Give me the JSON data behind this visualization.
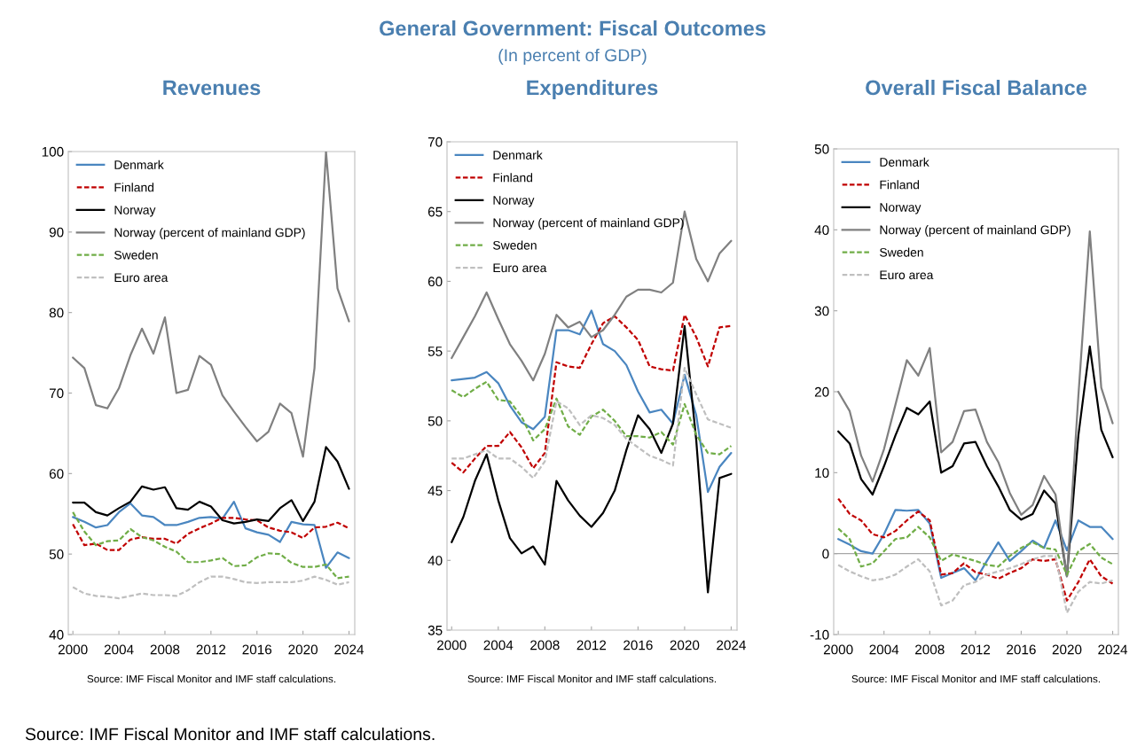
{
  "chart_data": [
    {
      "type": "other",
      "title": "General Government: Fiscal Outcomes",
      "subtitle": "(In percent of GDP)",
      "annotations": [
        "Source: IMF Fiscal Monitor and IMF staff calculations."
      ]
    },
    {
      "type": "line",
      "title": "Revenues",
      "x": [
        2000,
        2001,
        2002,
        2003,
        2004,
        2005,
        2006,
        2007,
        2008,
        2009,
        2010,
        2011,
        2012,
        2013,
        2014,
        2015,
        2016,
        2017,
        2018,
        2019,
        2020,
        2021,
        2022,
        2023,
        2024
      ],
      "xlim": [
        1999.6,
        2024.5
      ],
      "xticks": [
        2000,
        2004,
        2008,
        2012,
        2016,
        2020,
        2024
      ],
      "ylim": [
        40,
        100
      ],
      "yticks": [
        40,
        50,
        60,
        70,
        80,
        90,
        100
      ],
      "grid": false,
      "legend": "top left",
      "marker": "none",
      "annotations": [
        "Source: IMF Fiscal Monitor and IMF staff calculations."
      ],
      "series": [
        {
          "name": "Denmark",
          "color": "#4a86c0",
          "line_style": "solid",
          "values": [
            54.6,
            54.0,
            53.3,
            53.6,
            55.2,
            56.3,
            54.8,
            54.6,
            53.6,
            53.6,
            54.0,
            54.5,
            54.6,
            54.4,
            56.5,
            53.2,
            52.7,
            52.4,
            51.5,
            54.0,
            53.7,
            53.6,
            48.3,
            50.2,
            49.5
          ]
        },
        {
          "name": "Finland",
          "color": "#c00000",
          "line_style": "dashed",
          "values": [
            53.7,
            51.1,
            51.3,
            50.5,
            50.5,
            51.8,
            52.1,
            51.9,
            51.9,
            51.3,
            52.5,
            53.2,
            53.8,
            54.5,
            54.5,
            54.3,
            54.2,
            53.3,
            52.9,
            52.7,
            52.0,
            53.3,
            53.4,
            53.9,
            53.2
          ]
        },
        {
          "name": "Norway",
          "color": "#000000",
          "line_style": "solid",
          "values": [
            56.4,
            56.4,
            55.2,
            54.8,
            55.7,
            56.5,
            58.4,
            58.0,
            58.3,
            55.7,
            55.5,
            56.5,
            55.9,
            54.2,
            53.8,
            54.0,
            54.3,
            54.1,
            55.7,
            56.7,
            54.1,
            56.5,
            63.3,
            61.5,
            58.1
          ]
        },
        {
          "name": "Norway (percent of mainland GDP)",
          "color": "#808080",
          "line_style": "solid",
          "values": [
            74.4,
            73.1,
            68.5,
            68.1,
            70.6,
            74.7,
            78.0,
            74.9,
            79.4,
            70.0,
            70.4,
            74.6,
            73.5,
            69.7,
            67.7,
            65.8,
            64.0,
            65.2,
            68.7,
            67.5,
            62.1,
            73.1,
            100,
            83.0,
            78.9
          ]
        },
        {
          "name": "Sweden",
          "color": "#70ad47",
          "line_style": "dashed",
          "values": [
            55.2,
            52.8,
            51.1,
            51.6,
            51.7,
            53.1,
            52.1,
            51.7,
            50.9,
            50.3,
            49.0,
            49.0,
            49.2,
            49.5,
            48.5,
            48.6,
            49.6,
            50.1,
            50.0,
            48.9,
            48.4,
            48.4,
            48.7,
            47.0,
            47.2
          ]
        },
        {
          "name": "Euro area",
          "color": "#bfbfbf",
          "line_style": "dashed",
          "values": [
            45.9,
            45.1,
            44.8,
            44.7,
            44.5,
            44.8,
            45.1,
            44.9,
            44.9,
            44.8,
            45.5,
            46.5,
            47.2,
            47.2,
            46.9,
            46.5,
            46.4,
            46.5,
            46.5,
            46.5,
            46.7,
            47.2,
            46.8,
            46.2,
            46.5
          ]
        }
      ]
    },
    {
      "type": "line",
      "title": "Expenditures",
      "x": [
        2000,
        2001,
        2002,
        2003,
        2004,
        2005,
        2006,
        2007,
        2008,
        2009,
        2010,
        2011,
        2012,
        2013,
        2014,
        2015,
        2016,
        2017,
        2018,
        2019,
        2020,
        2021,
        2022,
        2023,
        2024
      ],
      "xlim": [
        1999.6,
        2024.5
      ],
      "xticks": [
        2000,
        2004,
        2008,
        2012,
        2016,
        2020,
        2024
      ],
      "ylim": [
        35,
        70
      ],
      "yticks": [
        35,
        40,
        45,
        50,
        55,
        60,
        65,
        70
      ],
      "grid": false,
      "legend": "top left",
      "marker": "none",
      "annotations": [
        "Source: IMF Fiscal Monitor and IMF staff calculations."
      ],
      "series": [
        {
          "name": "Denmark",
          "color": "#4a86c0",
          "line_style": "solid",
          "values": [
            52.9,
            53.0,
            53.1,
            53.5,
            52.7,
            51.1,
            49.9,
            49.4,
            50.3,
            56.5,
            56.5,
            56.2,
            57.9,
            55.5,
            55.0,
            54.0,
            52.1,
            50.6,
            50.8,
            49.8,
            53.3,
            50.4,
            44.9,
            46.7,
            47.7
          ]
        },
        {
          "name": "Finland",
          "color": "#c00000",
          "line_style": "dashed",
          "values": [
            47.0,
            46.3,
            47.3,
            48.2,
            48.2,
            49.2,
            48.1,
            46.6,
            47.7,
            54.2,
            53.9,
            53.8,
            55.5,
            57.0,
            57.5,
            56.7,
            55.8,
            53.9,
            53.7,
            53.6,
            57.6,
            56.0,
            53.9,
            56.7,
            56.8
          ]
        },
        {
          "name": "Norway",
          "color": "#000000",
          "line_style": "solid",
          "values": [
            41.3,
            43.1,
            45.7,
            47.6,
            44.3,
            41.6,
            40.5,
            41.0,
            39.7,
            45.7,
            44.3,
            43.2,
            42.4,
            43.4,
            45.0,
            47.9,
            50.4,
            49.4,
            47.7,
            49.8,
            56.8,
            48.6,
            37.7,
            45.9,
            46.2
          ]
        },
        {
          "name": "Norway (percent of mainland GDP)",
          "color": "#808080",
          "line_style": "solid",
          "values": [
            54.5,
            56.0,
            57.5,
            59.2,
            57.3,
            55.5,
            54.3,
            52.9,
            54.8,
            57.6,
            56.7,
            57.1,
            56.0,
            56.5,
            57.6,
            58.9,
            59.4,
            59.4,
            59.2,
            59.9,
            65.0,
            61.6,
            60.0,
            62.0,
            62.9
          ]
        },
        {
          "name": "Sweden",
          "color": "#70ad47",
          "line_style": "dashed",
          "values": [
            52.2,
            51.7,
            52.3,
            52.8,
            51.5,
            51.4,
            50.3,
            48.6,
            49.4,
            51.6,
            49.6,
            49.0,
            50.3,
            50.8,
            50.0,
            48.9,
            48.9,
            48.8,
            49.2,
            48.3,
            51.2,
            49.0,
            47.7,
            47.6,
            48.2
          ]
        },
        {
          "name": "Euro area",
          "color": "#bfbfbf",
          "line_style": "dashed",
          "values": [
            47.3,
            47.3,
            47.6,
            47.9,
            47.3,
            47.3,
            46.7,
            45.9,
            47.1,
            51.4,
            50.9,
            49.7,
            50.4,
            50.2,
            49.7,
            48.7,
            48.1,
            47.5,
            47.2,
            46.8,
            53.8,
            51.9,
            50.1,
            49.8,
            49.5
          ]
        }
      ]
    },
    {
      "type": "line",
      "title": "Overall Fiscal Balance",
      "x": [
        2000,
        2001,
        2002,
        2003,
        2004,
        2005,
        2006,
        2007,
        2008,
        2009,
        2010,
        2011,
        2012,
        2013,
        2014,
        2015,
        2016,
        2017,
        2018,
        2019,
        2020,
        2021,
        2022,
        2023,
        2024
      ],
      "xlim": [
        1999.6,
        2024.5
      ],
      "xticks": [
        2000,
        2004,
        2008,
        2012,
        2016,
        2020,
        2024
      ],
      "ylim": [
        -10,
        50
      ],
      "yticks": [
        -10,
        0,
        10,
        20,
        30,
        40,
        50
      ],
      "grid": false,
      "legend": "top left",
      "marker": "none",
      "annotations": [
        "Source: IMF Fiscal Monitor and IMF staff calculations."
      ],
      "ref_lines": [
        {
          "axis": "y",
          "value": 0,
          "label": null,
          "color": "#a6a6a6"
        }
      ],
      "series": [
        {
          "name": "Denmark",
          "color": "#4a86c0",
          "line_style": "solid",
          "values": [
            1.8,
            1.1,
            0.3,
            0.0,
            2.4,
            5.4,
            5.3,
            5.4,
            3.7,
            -3.0,
            -2.4,
            -1.8,
            -3.3,
            -0.9,
            1.4,
            -0.9,
            0.3,
            1.6,
            0.7,
            4.1,
            0.4,
            4.1,
            3.3,
            3.3,
            1.8
          ]
        },
        {
          "name": "Finland",
          "color": "#c00000",
          "line_style": "dashed",
          "values": [
            6.8,
            4.9,
            4.1,
            2.4,
            2.0,
            2.8,
            4.1,
            5.2,
            4.1,
            -2.6,
            -2.4,
            -1.2,
            -2.3,
            -2.6,
            -3.1,
            -2.4,
            -1.8,
            -0.7,
            -0.9,
            -0.7,
            -5.8,
            -3.5,
            -0.7,
            -2.8,
            -3.7
          ]
        },
        {
          "name": "Norway",
          "color": "#000000",
          "line_style": "solid",
          "values": [
            15.1,
            13.6,
            9.2,
            7.3,
            10.8,
            14.6,
            18.0,
            17.2,
            18.8,
            10.0,
            10.8,
            13.6,
            13.8,
            10.8,
            8.3,
            5.4,
            4.2,
            4.9,
            7.8,
            6.2,
            -2.8,
            14.6,
            25.6,
            15.3,
            11.9
          ]
        },
        {
          "name": "Norway (percent of mainland GDP)",
          "color": "#808080",
          "line_style": "solid",
          "values": [
            20.0,
            17.6,
            12.1,
            8.9,
            12.9,
            18.4,
            23.9,
            22.0,
            25.4,
            12.5,
            13.8,
            17.6,
            17.8,
            13.8,
            11.3,
            7.5,
            4.8,
            6.0,
            9.6,
            7.3,
            -2.8,
            19.5,
            39.8,
            20.5,
            16.1
          ]
        },
        {
          "name": "Sweden",
          "color": "#70ad47",
          "line_style": "dashed",
          "values": [
            3.1,
            1.8,
            -1.6,
            -1.2,
            0.3,
            1.8,
            2.0,
            3.3,
            2.0,
            -0.9,
            -0.1,
            -0.5,
            -0.9,
            -1.4,
            -1.6,
            -0.3,
            0.7,
            1.4,
            0.7,
            0.5,
            -2.6,
            0.3,
            1.2,
            -0.5,
            -1.3
          ]
        },
        {
          "name": "Euro area",
          "color": "#bfbfbf",
          "line_style": "dashed",
          "values": [
            -1.4,
            -2.2,
            -2.8,
            -3.3,
            -3.1,
            -2.6,
            -1.6,
            -0.7,
            -2.2,
            -6.4,
            -5.8,
            -3.9,
            -3.5,
            -2.6,
            -2.2,
            -1.8,
            -1.3,
            -0.7,
            -0.3,
            -0.3,
            -7.3,
            -4.7,
            -3.5,
            -3.7,
            -3.3
          ]
        }
      ]
    }
  ]
}
